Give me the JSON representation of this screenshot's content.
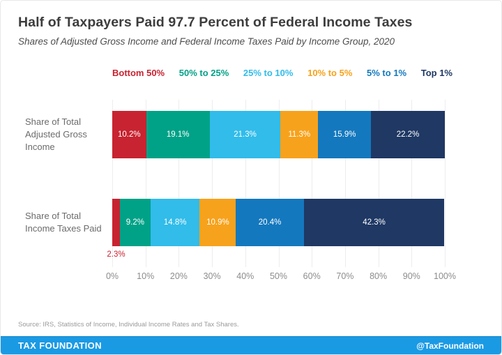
{
  "header": {
    "title": "Half of Taxpayers Paid 97.7 Percent of Federal Income Taxes",
    "subtitle": "Shares of Adjusted Gross Income and Federal Income Taxes Paid by Income Group, 2020"
  },
  "chart_data": {
    "type": "bar",
    "orientation": "horizontal",
    "stacked": true,
    "unit": "%",
    "title": "Half of Taxpayers Paid 97.7 Percent of Federal Income Taxes",
    "categories": [
      "Share of Total Adjusted Gross Income",
      "Share of Total Income Taxes Paid"
    ],
    "category_label_lines": [
      [
        "Share of Total",
        "Adjusted Gross",
        "Income"
      ],
      [
        "Share of Total",
        "Income Taxes Paid"
      ]
    ],
    "series": [
      {
        "name": "Bottom 50%",
        "color": "#C82330",
        "values": [
          10.2,
          2.3
        ]
      },
      {
        "name": "50% to 25%",
        "color": "#00A287",
        "values": [
          19.1,
          9.2
        ]
      },
      {
        "name": "25% to 10%",
        "color": "#31BCEA",
        "values": [
          21.3,
          14.8
        ]
      },
      {
        "name": "10% to 5%",
        "color": "#F7A21C",
        "values": [
          11.3,
          10.9
        ]
      },
      {
        "name": "5% to 1%",
        "color": "#1478BE",
        "values": [
          15.9,
          20.4
        ]
      },
      {
        "name": "Top 1%",
        "color": "#1F3864",
        "values": [
          22.2,
          42.3
        ]
      }
    ],
    "x_ticks": [
      "0%",
      "10%",
      "20%",
      "30%",
      "40%",
      "50%",
      "60%",
      "70%",
      "80%",
      "90%",
      "100%"
    ],
    "xlim": [
      0,
      100
    ],
    "grid": true,
    "legend_position": "top",
    "small_segment_label_outside_threshold": 5
  },
  "source_note": "Source: IRS, Statistics of Income, Individual Income Rates and Tax Shares.",
  "footer": {
    "brand": "TAX FOUNDATION",
    "handle": "@TaxFoundation",
    "background": "#1B9AE4"
  }
}
